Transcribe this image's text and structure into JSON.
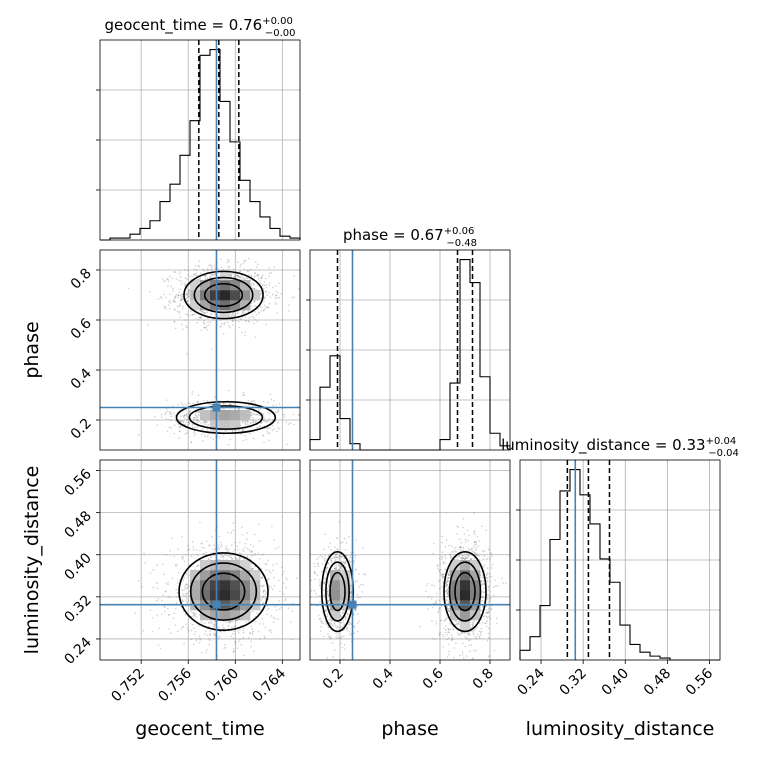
{
  "figure": {
    "background": "#ffffff",
    "truth_color": "#4682b4",
    "panel_frame_color": "#000000",
    "grid_color": "#b0b0b0",
    "grid": true
  },
  "chart_data": {
    "type": "corner",
    "parameters": [
      {
        "name": "geocent_time",
        "axis_label": "geocent_time",
        "truth": 0.7584,
        "median": 0.7586,
        "quantiles": [
          0.7569,
          0.7586,
          0.7603
        ],
        "range": [
          0.7485,
          0.7655
        ],
        "ticks": [
          0.752,
          0.756,
          0.76,
          0.764
        ],
        "tick_labels": [
          "0.752",
          "0.756",
          "0.760",
          "0.764"
        ],
        "title": {
          "text": "geocent_time = 0.76",
          "sup": "+0.00",
          "sub": "−0.00"
        },
        "histogram": {
          "edges": [
            0.7485,
            0.74935,
            0.7502,
            0.75105,
            0.7519,
            0.75275,
            0.7536,
            0.75445,
            0.7553,
            0.75615,
            0.757,
            0.75785,
            0.7587,
            0.75955,
            0.7604,
            0.76125,
            0.7621,
            0.76295,
            0.7638,
            0.76465,
            0.7655
          ],
          "counts": [
            0,
            1,
            1,
            3,
            6,
            10,
            20,
            29,
            44,
            62,
            96,
            99,
            72,
            51,
            31,
            20,
            12,
            6,
            2,
            1
          ]
        }
      },
      {
        "name": "phase",
        "axis_label": "phase",
        "truth": 0.25,
        "median": 0.67,
        "quantiles": [
          0.19,
          0.67,
          0.73
        ],
        "range": [
          0.08,
          0.88
        ],
        "ticks": [
          0.2,
          0.4,
          0.6,
          0.8
        ],
        "tick_labels": [
          "0.2",
          "0.4",
          "0.6",
          "0.8"
        ],
        "title": {
          "text": "phase = 0.67",
          "sup": "+0.06",
          "sub": "−0.48"
        },
        "histogram": {
          "edges": [
            0.08,
            0.12,
            0.16,
            0.2,
            0.24,
            0.28,
            0.32,
            0.36,
            0.4,
            0.44,
            0.48,
            0.52,
            0.56,
            0.6,
            0.64,
            0.68,
            0.72,
            0.76,
            0.8,
            0.84,
            0.88
          ],
          "counts": [
            5,
            30,
            45,
            15,
            3,
            0,
            0,
            0,
            0,
            0,
            0,
            0,
            0,
            5,
            32,
            91,
            80,
            35,
            8,
            2
          ]
        }
      },
      {
        "name": "luminosity_distance",
        "axis_label": "luminosity_distance",
        "truth": 0.305,
        "median": 0.33,
        "quantiles": [
          0.29,
          0.33,
          0.37
        ],
        "range": [
          0.2,
          0.58
        ],
        "ticks": [
          0.24,
          0.32,
          0.4,
          0.48,
          0.56
        ],
        "tick_labels": [
          "0.24",
          "0.32",
          "0.40",
          "0.48",
          "0.56"
        ],
        "title": {
          "text": "luminosity_distance = 0.33",
          "sup": "+0.04",
          "sub": "−0.04"
        },
        "histogram": {
          "edges": [
            0.2,
            0.219,
            0.238,
            0.257,
            0.276,
            0.295,
            0.314,
            0.333,
            0.352,
            0.371,
            0.39,
            0.409,
            0.428,
            0.447,
            0.466,
            0.485,
            0.504,
            0.523,
            0.542,
            0.561,
            0.58
          ],
          "counts": [
            5,
            12,
            28,
            62,
            87,
            98,
            85,
            70,
            52,
            40,
            18,
            8,
            4,
            2,
            1,
            0,
            0,
            0,
            0,
            0
          ]
        }
      }
    ],
    "pairs": [
      {
        "x": "geocent_time",
        "y": "phase",
        "modes": [
          {
            "cx": 0.759,
            "cy": 0.7,
            "sx": 0.0016,
            "sy": 0.045,
            "peak": 1.0
          },
          {
            "cx": 0.7592,
            "cy": 0.21,
            "sx": 0.002,
            "sy": 0.03,
            "peak": 0.45
          }
        ]
      },
      {
        "x": "geocent_time",
        "y": "luminosity_distance",
        "modes": [
          {
            "cx": 0.759,
            "cy": 0.33,
            "sx": 0.0018,
            "sy": 0.035,
            "peak": 1.0
          }
        ]
      },
      {
        "x": "phase",
        "y": "luminosity_distance",
        "modes": [
          {
            "cx": 0.7,
            "cy": 0.33,
            "sx": 0.04,
            "sy": 0.036,
            "peak": 1.0
          },
          {
            "cx": 0.19,
            "cy": 0.33,
            "sx": 0.03,
            "sy": 0.036,
            "peak": 0.55
          }
        ]
      }
    ]
  }
}
